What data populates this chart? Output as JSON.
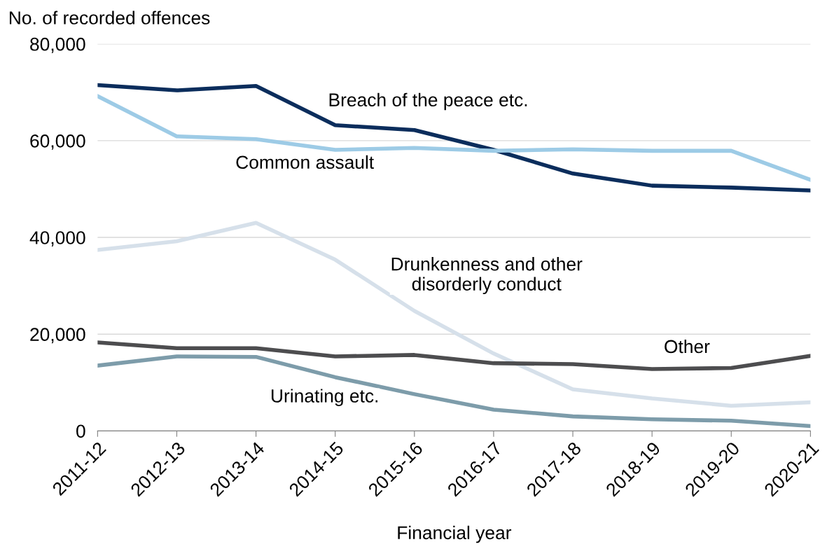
{
  "chart_data": {
    "type": "line",
    "ylabel": "No. of recorded offences",
    "xlabel": "Financial year",
    "categories": [
      "2011-12",
      "2012-13",
      "2013-14",
      "2014-15",
      "2015-16",
      "2016-17",
      "2017-18",
      "2018-19",
      "2019-20",
      "2020-21"
    ],
    "series": [
      {
        "name": "Breach of the peace etc.",
        "color": "#0b2d5c",
        "values": [
          71500,
          70400,
          71300,
          63200,
          62200,
          58100,
          53200,
          50700,
          50300,
          49700
        ]
      },
      {
        "name": "Common assault",
        "color": "#9dcbe6",
        "values": [
          69200,
          60900,
          60300,
          58100,
          58500,
          57900,
          58200,
          57900,
          57900,
          51900
        ]
      },
      {
        "name": "Drunkenness and other\ndisorderly conduct",
        "color": "#d6e0ea",
        "values": [
          37400,
          39200,
          43000,
          35400,
          24800,
          16000,
          8600,
          6700,
          5200,
          5900
        ]
      },
      {
        "name": "Other",
        "color": "#4d4d4f",
        "values": [
          18300,
          17100,
          17100,
          15400,
          15700,
          14000,
          13800,
          12800,
          13000,
          15500
        ]
      },
      {
        "name": "Urinating etc.",
        "color": "#7d9caa",
        "values": [
          13500,
          15400,
          15300,
          11100,
          7600,
          4400,
          3000,
          2400,
          2100,
          1000
        ]
      }
    ],
    "ylim": [
      0,
      80000
    ],
    "yticks": [
      {
        "value": 0,
        "label": "0"
      },
      {
        "value": 20000,
        "label": "20,000"
      },
      {
        "value": 40000,
        "label": "40,000"
      },
      {
        "value": 60000,
        "label": "60,000"
      },
      {
        "value": 80000,
        "label": "80,000"
      }
    ],
    "grid": "y",
    "legend": false,
    "marker": "none",
    "line_style": "solid"
  }
}
